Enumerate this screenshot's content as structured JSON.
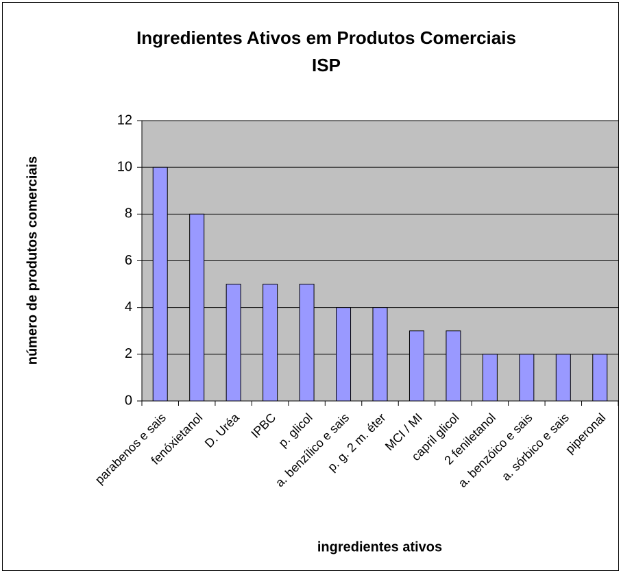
{
  "chart_data": {
    "type": "bar",
    "title": "Ingredientes Ativos em Produtos Comerciais",
    "subtitle": "ISP",
    "x_label": "ingredientes ativos",
    "y_label": "número de produtos comerciais",
    "categories": [
      "parabenos e sais",
      "fenóxietanol",
      "D. Uréa",
      "IPBC",
      "p. glicol",
      "a. benzílico e sais",
      "p. g. 2 m. éter",
      "MCI / MI",
      "capril glicol",
      "2 feniletanol",
      "a. benzóico e sais",
      "a. sórbico e sais",
      "piperonal"
    ],
    "values": [
      10,
      8,
      5,
      5,
      5,
      4,
      4,
      3,
      3,
      2,
      2,
      2,
      2
    ],
    "color": "#9999ff",
    "ylim": [
      0,
      12
    ],
    "yticks": [
      0,
      2,
      4,
      6,
      8,
      10,
      12
    ],
    "grid": true
  }
}
